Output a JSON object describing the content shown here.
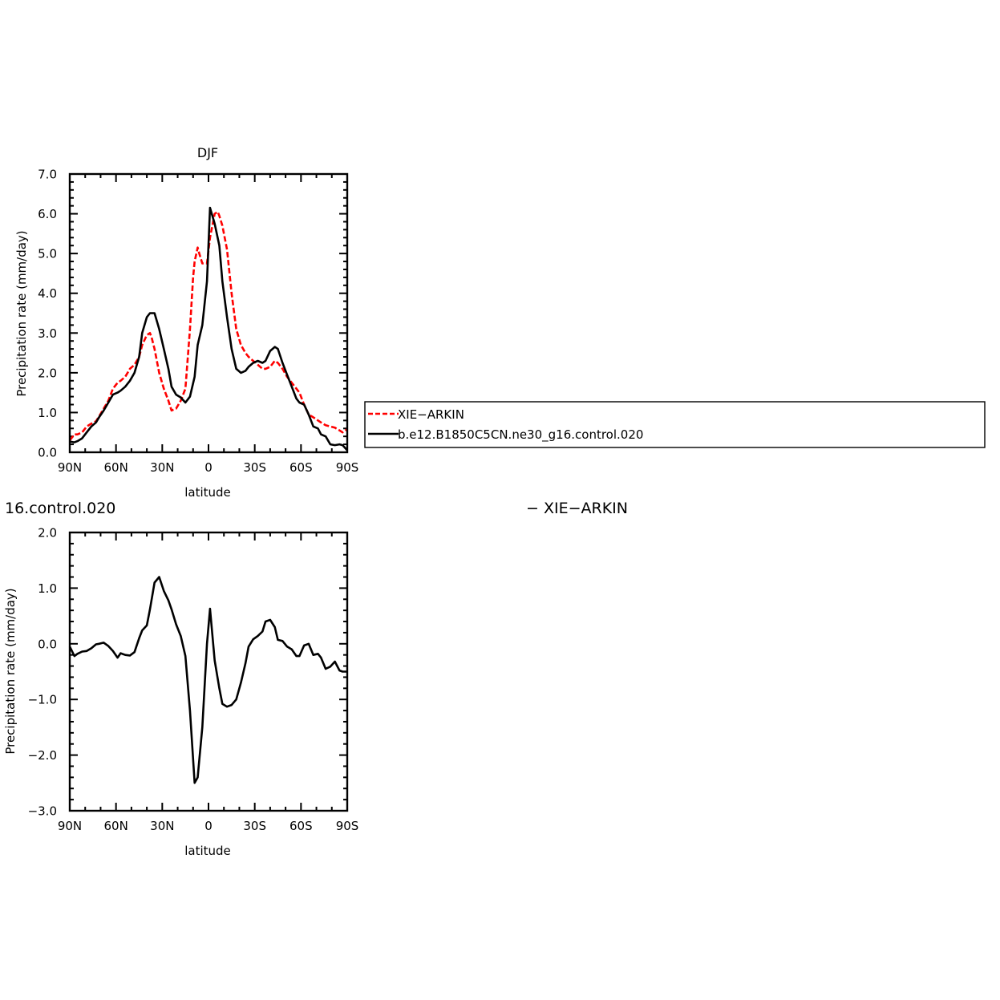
{
  "chart_data": [
    {
      "type": "line",
      "title": "DJF",
      "xlabel": "latitude",
      "ylabel": "Precipitation rate (mm/day)",
      "xlim": [
        90,
        -90
      ],
      "ylim": [
        0,
        7
      ],
      "x_ticks": [
        90,
        60,
        30,
        0,
        -30,
        -60,
        -90
      ],
      "x_tick_labels": [
        "90N",
        "60N",
        "30N",
        "0",
        "30S",
        "60S",
        "90S"
      ],
      "y_ticks": [
        0,
        1,
        2,
        3,
        4,
        5,
        6,
        7
      ],
      "y_tick_labels": [
        "0.0",
        "1.0",
        "2.0",
        "3.0",
        "4.0",
        "5.0",
        "6.0",
        "7.0"
      ],
      "grid": false,
      "legend": {
        "placement": "right",
        "entries": [
          "XIE−ARKIN",
          "b.e12.B1850C5CN.ne30_g16.control.020"
        ]
      },
      "series": [
        {
          "name": "XIE−ARKIN",
          "color": "#ff0000",
          "dash": "dashed",
          "x": [
            90,
            87,
            85,
            82,
            79,
            76,
            73,
            71,
            68,
            65,
            62,
            59,
            57,
            54,
            51,
            48,
            45,
            43,
            40,
            38,
            37,
            35,
            32,
            29,
            26,
            24,
            21,
            18,
            15,
            12,
            10,
            9,
            7,
            6,
            4,
            1,
            -1,
            -4,
            -6,
            -7,
            -9,
            -12,
            -15,
            -18,
            -21,
            -24,
            -26,
            -29,
            -32,
            -35,
            -37,
            -40,
            -43,
            -45,
            -48,
            -51,
            -54,
            -57,
            -59,
            -62,
            -65,
            -68,
            -71,
            -73,
            -76,
            -79,
            -82,
            -85,
            -87,
            -90
          ],
          "y": [
            0.3,
            0.45,
            0.45,
            0.5,
            0.65,
            0.72,
            0.78,
            0.9,
            1.1,
            1.3,
            1.6,
            1.75,
            1.8,
            1.9,
            2.1,
            2.2,
            2.4,
            2.7,
            2.95,
            3.0,
            2.9,
            2.6,
            2.0,
            1.6,
            1.3,
            1.05,
            1.1,
            1.3,
            1.6,
            3.1,
            4.4,
            4.8,
            5.15,
            5.0,
            4.75,
            4.75,
            5.4,
            6.0,
            6.05,
            5.95,
            5.7,
            5.1,
            4.0,
            3.1,
            2.7,
            2.5,
            2.4,
            2.3,
            2.2,
            2.1,
            2.1,
            2.15,
            2.3,
            2.25,
            2.1,
            1.9,
            1.75,
            1.6,
            1.5,
            1.2,
            0.95,
            0.88,
            0.8,
            0.75,
            0.68,
            0.65,
            0.62,
            0.55,
            0.5,
            0.58
          ]
        },
        {
          "name": "b.e12.B1850C5CN.ne30_g16.control.020",
          "color": "#000000",
          "dash": "solid",
          "x": [
            90,
            87,
            85,
            82,
            79,
            76,
            73,
            71,
            68,
            65,
            62,
            59,
            57,
            54,
            51,
            48,
            45,
            43,
            40,
            38,
            35,
            32,
            29,
            26,
            24,
            21,
            18,
            15,
            12,
            9,
            7,
            4,
            1,
            -1,
            -4,
            -7,
            -9,
            -12,
            -15,
            -18,
            -21,
            -24,
            -26,
            -29,
            -32,
            -35,
            -37,
            -40,
            -43,
            -45,
            -48,
            -51,
            -54,
            -57,
            -59,
            -62,
            -65,
            -68,
            -71,
            -73,
            -76,
            -79,
            -82,
            -85,
            -87,
            -90
          ],
          "y": [
            0.27,
            0.25,
            0.28,
            0.35,
            0.5,
            0.65,
            0.75,
            0.88,
            1.05,
            1.25,
            1.45,
            1.5,
            1.55,
            1.65,
            1.8,
            2.0,
            2.4,
            3.0,
            3.4,
            3.5,
            3.5,
            3.1,
            2.6,
            2.1,
            1.65,
            1.45,
            1.38,
            1.25,
            1.4,
            1.9,
            2.7,
            3.2,
            4.3,
            6.15,
            5.75,
            5.2,
            4.3,
            3.4,
            2.6,
            2.1,
            2.0,
            2.05,
            2.15,
            2.25,
            2.3,
            2.25,
            2.3,
            2.55,
            2.65,
            2.6,
            2.25,
            1.95,
            1.65,
            1.35,
            1.25,
            1.2,
            0.95,
            0.65,
            0.6,
            0.45,
            0.4,
            0.2,
            0.18,
            0.2,
            0.18,
            0.05
          ]
        }
      ]
    },
    {
      "type": "line",
      "title": "",
      "header_left": "16.control.020",
      "header_right": "− XIE−ARKIN",
      "xlabel": "latitude",
      "ylabel": "Precipitation rate (mm/day)",
      "xlim": [
        90,
        -90
      ],
      "ylim": [
        -3,
        2
      ],
      "x_ticks": [
        90,
        60,
        30,
        0,
        -30,
        -60,
        -90
      ],
      "x_tick_labels": [
        "90N",
        "60N",
        "30N",
        "0",
        "30S",
        "60S",
        "90S"
      ],
      "y_ticks": [
        -3,
        -2,
        -1,
        0,
        1,
        2
      ],
      "y_tick_labels": [
        "−3.0",
        "−2.0",
        "−1.0",
        "0.0",
        "1.0",
        "2.0"
      ],
      "grid": false,
      "series": [
        {
          "color": "#000000",
          "dash": "solid",
          "x": [
            90,
            87,
            85,
            82,
            79,
            76,
            73,
            71,
            68,
            65,
            62,
            59,
            57,
            54,
            51,
            48,
            45,
            43,
            40,
            38,
            35,
            32,
            29,
            26,
            24,
            21,
            18,
            15,
            12,
            9,
            7,
            4,
            1,
            -1,
            -4,
            -7,
            -9,
            -12,
            -15,
            -18,
            -21,
            -24,
            -26,
            -29,
            -32,
            -35,
            -37,
            -40,
            -43,
            -45,
            -48,
            -51,
            -54,
            -57,
            -59,
            -62,
            -65,
            -68,
            -71,
            -73,
            -76,
            -79,
            -82,
            -85,
            -87,
            -90
          ],
          "y": [
            -0.05,
            -0.22,
            -0.18,
            -0.14,
            -0.13,
            -0.08,
            -0.01,
            0.0,
            0.02,
            -0.04,
            -0.13,
            -0.25,
            -0.17,
            -0.2,
            -0.21,
            -0.15,
            0.1,
            0.24,
            0.33,
            0.62,
            1.1,
            1.2,
            0.95,
            0.78,
            0.62,
            0.35,
            0.14,
            -0.22,
            -1.2,
            -2.5,
            -2.4,
            -1.5,
            0.0,
            0.63,
            -0.3,
            -0.8,
            -1.08,
            -1.13,
            -1.1,
            -1.0,
            -0.7,
            -0.35,
            -0.05,
            0.08,
            0.14,
            0.22,
            0.4,
            0.43,
            0.3,
            0.07,
            0.05,
            -0.05,
            -0.1,
            -0.22,
            -0.22,
            -0.03,
            0.0,
            -0.2,
            -0.18,
            -0.25,
            -0.45,
            -0.41,
            -0.32,
            -0.48,
            -0.5,
            -0.5
          ]
        }
      ]
    }
  ]
}
